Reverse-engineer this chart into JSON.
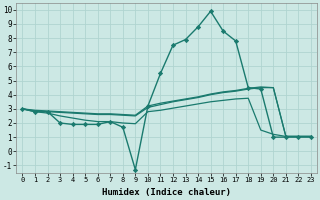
{
  "xlabel": "Humidex (Indice chaleur)",
  "bg_color": "#cce8e4",
  "grid_color": "#b0d4d0",
  "line_color": "#1a7a6e",
  "xlim": [
    -0.5,
    23.5
  ],
  "ylim": [
    -1.5,
    10.5
  ],
  "xticks": [
    0,
    1,
    2,
    3,
    4,
    5,
    6,
    7,
    8,
    9,
    10,
    11,
    12,
    13,
    14,
    15,
    16,
    17,
    18,
    19,
    20,
    21,
    22,
    23
  ],
  "yticks": [
    -1,
    0,
    1,
    2,
    3,
    4,
    5,
    6,
    7,
    8,
    9,
    10
  ],
  "series": [
    {
      "x": [
        0,
        1,
        2,
        3,
        4,
        5,
        6,
        7,
        8,
        9,
        10,
        11,
        12,
        13,
        14,
        15,
        16,
        17,
        18,
        19,
        20,
        21,
        22,
        23
      ],
      "y": [
        3.0,
        2.8,
        2.8,
        2.0,
        1.9,
        1.9,
        1.9,
        2.1,
        1.7,
        -1.3,
        3.2,
        5.5,
        7.5,
        7.9,
        8.8,
        9.9,
        8.5,
        7.8,
        4.5,
        4.4,
        1.0,
        1.0,
        1.0,
        1.0
      ],
      "marker": "D",
      "marker_size": 2.2,
      "linewidth": 1.0
    },
    {
      "x": [
        0,
        1,
        2,
        3,
        4,
        5,
        6,
        7,
        8,
        9,
        10,
        11,
        12,
        13,
        14,
        15,
        16,
        17,
        18,
        19,
        20,
        21,
        22,
        23
      ],
      "y": [
        3.0,
        2.85,
        2.8,
        2.75,
        2.7,
        2.65,
        2.6,
        2.6,
        2.55,
        2.5,
        3.1,
        3.3,
        3.5,
        3.65,
        3.8,
        4.0,
        4.15,
        4.25,
        4.4,
        4.5,
        4.5,
        1.05,
        1.05,
        1.05
      ],
      "marker": null,
      "linewidth": 0.9
    },
    {
      "x": [
        0,
        1,
        2,
        3,
        4,
        5,
        6,
        7,
        8,
        9,
        10,
        11,
        12,
        13,
        14,
        15,
        16,
        17,
        18,
        19,
        20,
        21,
        22,
        23
      ],
      "y": [
        3.0,
        2.9,
        2.85,
        2.8,
        2.75,
        2.7,
        2.65,
        2.65,
        2.6,
        2.55,
        3.2,
        3.4,
        3.55,
        3.7,
        3.85,
        4.05,
        4.2,
        4.3,
        4.45,
        4.55,
        4.5,
        1.05,
        1.05,
        1.05
      ],
      "marker": null,
      "linewidth": 0.9
    },
    {
      "x": [
        0,
        1,
        2,
        3,
        4,
        5,
        6,
        7,
        8,
        9,
        10,
        11,
        12,
        13,
        14,
        15,
        16,
        17,
        18,
        19,
        20,
        21,
        22,
        23
      ],
      "y": [
        3.0,
        2.8,
        2.7,
        2.5,
        2.35,
        2.2,
        2.1,
        2.1,
        2.0,
        1.95,
        2.8,
        2.9,
        3.05,
        3.2,
        3.35,
        3.5,
        3.6,
        3.7,
        3.75,
        1.5,
        1.2,
        1.05,
        1.05,
        1.05
      ],
      "marker": null,
      "linewidth": 0.9
    }
  ]
}
